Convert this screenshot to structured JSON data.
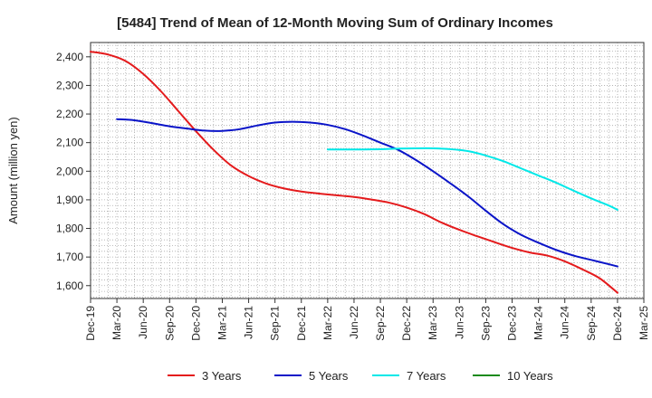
{
  "chart_data": {
    "type": "line",
    "title": "[5484]  Trend of Mean of 12-Month Moving Sum of Ordinary Incomes",
    "xlabel": "",
    "ylabel": "Amount (million yen)",
    "ylim": [
      1555,
      2450
    ],
    "yticks": [
      1600,
      1700,
      1800,
      1900,
      2000,
      2100,
      2200,
      2300,
      2400
    ],
    "ytick_labels": [
      "1,600",
      "1,700",
      "1,800",
      "1,900",
      "2,000",
      "2,100",
      "2,200",
      "2,300",
      "2,400"
    ],
    "x_range_months": [
      0,
      63
    ],
    "xticks": [
      {
        "m": 0,
        "label": "Dec-19"
      },
      {
        "m": 3,
        "label": "Mar-20"
      },
      {
        "m": 6,
        "label": "Jun-20"
      },
      {
        "m": 9,
        "label": "Sep-20"
      },
      {
        "m": 12,
        "label": "Dec-20"
      },
      {
        "m": 15,
        "label": "Mar-21"
      },
      {
        "m": 18,
        "label": "Jun-21"
      },
      {
        "m": 21,
        "label": "Sep-21"
      },
      {
        "m": 24,
        "label": "Dec-21"
      },
      {
        "m": 27,
        "label": "Mar-22"
      },
      {
        "m": 30,
        "label": "Jun-22"
      },
      {
        "m": 33,
        "label": "Sep-22"
      },
      {
        "m": 36,
        "label": "Dec-22"
      },
      {
        "m": 39,
        "label": "Mar-23"
      },
      {
        "m": 42,
        "label": "Jun-23"
      },
      {
        "m": 45,
        "label": "Sep-23"
      },
      {
        "m": 48,
        "label": "Dec-23"
      },
      {
        "m": 51,
        "label": "Mar-24"
      },
      {
        "m": 54,
        "label": "Jun-24"
      },
      {
        "m": 57,
        "label": "Sep-24"
      },
      {
        "m": 60,
        "label": "Dec-24"
      },
      {
        "m": 63,
        "label": "Mar-25"
      }
    ],
    "grid": true,
    "legend_position": "bottom",
    "series": [
      {
        "name": "3 Years",
        "color": "#e41a1c",
        "points": [
          [
            0,
            2418
          ],
          [
            2,
            2408
          ],
          [
            4,
            2385
          ],
          [
            6,
            2340
          ],
          [
            8,
            2280
          ],
          [
            10,
            2210
          ],
          [
            12,
            2140
          ],
          [
            14,
            2075
          ],
          [
            16,
            2020
          ],
          [
            18,
            1983
          ],
          [
            20,
            1957
          ],
          [
            22,
            1940
          ],
          [
            24,
            1929
          ],
          [
            26,
            1922
          ],
          [
            28,
            1916
          ],
          [
            30,
            1910
          ],
          [
            32,
            1901
          ],
          [
            34,
            1890
          ],
          [
            36,
            1873
          ],
          [
            38,
            1850
          ],
          [
            40,
            1820
          ],
          [
            42,
            1795
          ],
          [
            44,
            1773
          ],
          [
            46,
            1752
          ],
          [
            48,
            1732
          ],
          [
            50,
            1716
          ],
          [
            52,
            1705
          ],
          [
            54,
            1685
          ],
          [
            56,
            1657
          ],
          [
            58,
            1625
          ],
          [
            60,
            1575
          ]
        ]
      },
      {
        "name": "5 Years",
        "color": "#0a14c8",
        "points": [
          [
            3,
            2182
          ],
          [
            5,
            2178
          ],
          [
            7,
            2168
          ],
          [
            9,
            2157
          ],
          [
            11,
            2149
          ],
          [
            13,
            2142
          ],
          [
            15,
            2141
          ],
          [
            17,
            2147
          ],
          [
            19,
            2160
          ],
          [
            21,
            2170
          ],
          [
            23,
            2173
          ],
          [
            25,
            2170
          ],
          [
            27,
            2162
          ],
          [
            29,
            2147
          ],
          [
            31,
            2125
          ],
          [
            33,
            2100
          ],
          [
            35,
            2075
          ],
          [
            37,
            2040
          ],
          [
            39,
            2000
          ],
          [
            41,
            1957
          ],
          [
            43,
            1912
          ],
          [
            45,
            1862
          ],
          [
            47,
            1815
          ],
          [
            49,
            1778
          ],
          [
            51,
            1750
          ],
          [
            53,
            1725
          ],
          [
            55,
            1705
          ],
          [
            57,
            1690
          ],
          [
            59,
            1675
          ],
          [
            60,
            1667
          ]
        ]
      },
      {
        "name": "7 Years",
        "color": "#00e8e8",
        "points": [
          [
            27,
            2076
          ],
          [
            29,
            2076
          ],
          [
            31,
            2076
          ],
          [
            33,
            2077
          ],
          [
            35,
            2079
          ],
          [
            37,
            2080
          ],
          [
            39,
            2080
          ],
          [
            41,
            2077
          ],
          [
            43,
            2070
          ],
          [
            45,
            2055
          ],
          [
            47,
            2035
          ],
          [
            49,
            2010
          ],
          [
            51,
            1985
          ],
          [
            53,
            1960
          ],
          [
            55,
            1932
          ],
          [
            57,
            1905
          ],
          [
            59,
            1880
          ],
          [
            60,
            1865
          ]
        ]
      },
      {
        "name": "10 Years",
        "color": "#1a8a1a",
        "points": []
      }
    ]
  }
}
